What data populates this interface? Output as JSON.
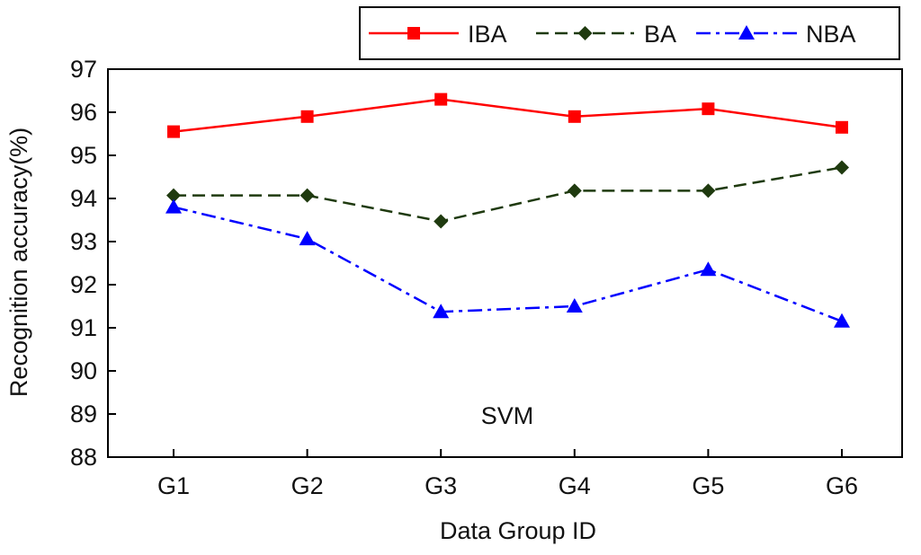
{
  "chart_data": {
    "type": "line",
    "title": "",
    "xlabel": "Data Group ID",
    "ylabel": "Recognition accuracy(%)",
    "categories": [
      "G1",
      "G2",
      "G3",
      "G4",
      "G5",
      "G6"
    ],
    "ylim": [
      88,
      97
    ],
    "yticks": [
      "88",
      "89",
      "90",
      "91",
      "92",
      "93",
      "94",
      "95",
      "96",
      "97"
    ],
    "annotation": "SVM",
    "legend_position": "top-right",
    "series": [
      {
        "name": "IBA",
        "values": [
          95.55,
          95.9,
          96.3,
          95.9,
          96.08,
          95.65
        ],
        "color": "#ff0000",
        "marker": "square",
        "line_style": "solid"
      },
      {
        "name": "BA",
        "values": [
          94.07,
          94.07,
          93.47,
          94.18,
          94.18,
          94.72
        ],
        "color": "#1f3a0f",
        "marker": "diamond",
        "line_style": "dashed"
      },
      {
        "name": "NBA",
        "values": [
          93.8,
          93.06,
          91.37,
          91.5,
          92.35,
          91.15
        ],
        "color": "#0000ff",
        "marker": "triangle",
        "line_style": "dashdot"
      }
    ]
  }
}
